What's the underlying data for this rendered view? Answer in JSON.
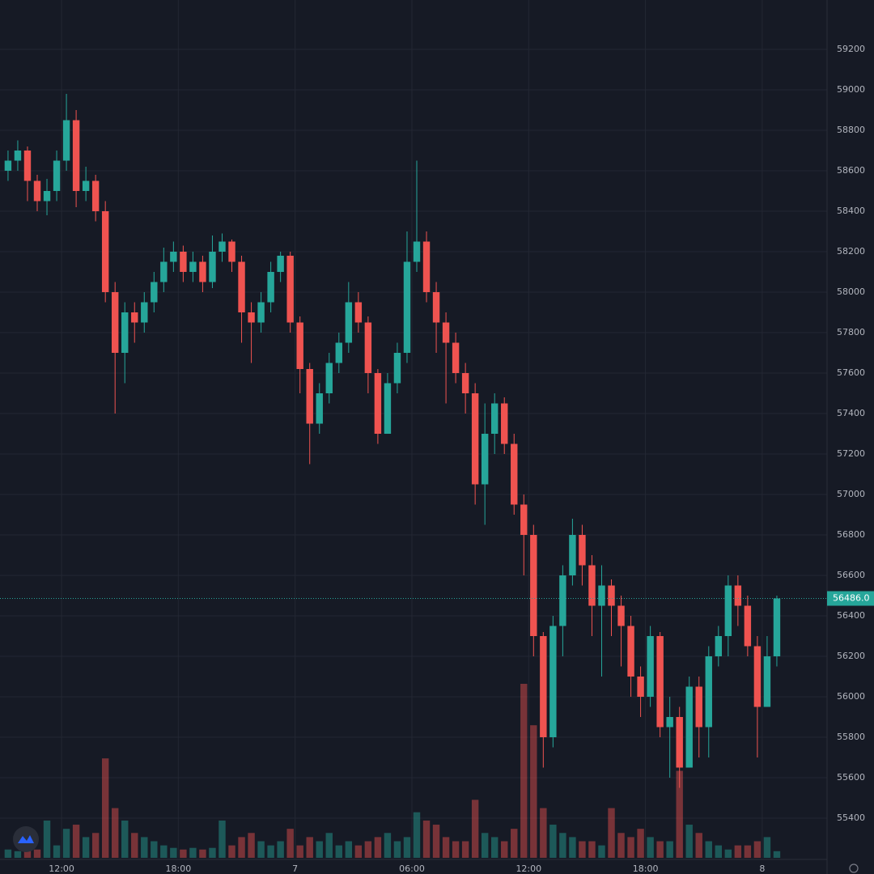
{
  "chart_data": {
    "type": "candlestick",
    "x": [
      9.25,
      9.75,
      10.25,
      10.75,
      11.25,
      11.75,
      12.25,
      12.75,
      13.25,
      13.75,
      14.25,
      14.75,
      15.25,
      15.75,
      16.25,
      16.75,
      17.25,
      17.75,
      18.25,
      18.75,
      19.25,
      19.75,
      20.25,
      20.75,
      21.25,
      21.75,
      22.25,
      22.75,
      23.25,
      23.75,
      24.25,
      24.75,
      25.25,
      25.75,
      26.25,
      26.75,
      27.25,
      27.75,
      28.25,
      28.75,
      29.25,
      29.75,
      30.25,
      30.75,
      31.25,
      31.75,
      32.25,
      32.75,
      33.25,
      33.75,
      34.25,
      34.75,
      35.25,
      35.75,
      36.25,
      36.75,
      37.25,
      37.75,
      38.25,
      38.75,
      39.25,
      39.75,
      40.25,
      40.75,
      41.25,
      41.75,
      42.25,
      42.75,
      43.25,
      43.75,
      44.25,
      44.75,
      45.25,
      45.75,
      46.25,
      46.75,
      47.25,
      47.75,
      48.25,
      48.75
    ],
    "open": [
      58600,
      58650,
      58700,
      58550,
      58450,
      58500,
      58650,
      58850,
      58500,
      58550,
      58400,
      58000,
      57700,
      57900,
      57850,
      57950,
      58050,
      58150,
      58200,
      58100,
      58150,
      58050,
      58200,
      58250,
      58150,
      57900,
      57850,
      57950,
      58100,
      58180,
      57850,
      57620,
      57350,
      57500,
      57650,
      57750,
      57950,
      57850,
      57600,
      57300,
      57550,
      57700,
      58150,
      58250,
      58000,
      57850,
      57750,
      57600,
      57500,
      57050,
      57300,
      57450,
      57250,
      56950,
      56800,
      56300,
      55800,
      56350,
      56600,
      56800,
      56650,
      56450,
      56550,
      56450,
      56350,
      56100,
      56000,
      56300,
      55850,
      55900,
      55650,
      56050,
      55850,
      56200,
      56300,
      56550,
      56450,
      56250,
      55950,
      56200
    ],
    "high": [
      58700,
      58750,
      58720,
      58580,
      58560,
      58700,
      58980,
      58900,
      58620,
      58580,
      58450,
      58050,
      57950,
      57950,
      58000,
      58100,
      58220,
      58250,
      58230,
      58200,
      58180,
      58280,
      58290,
      58260,
      58180,
      57950,
      58000,
      58150,
      58200,
      58200,
      57880,
      57650,
      57550,
      57700,
      57800,
      58050,
      58000,
      57880,
      57620,
      57600,
      57750,
      58300,
      58650,
      58300,
      58050,
      57900,
      57800,
      57650,
      57550,
      57450,
      57500,
      57480,
      57300,
      57000,
      56850,
      56320,
      56400,
      56650,
      56880,
      56850,
      56700,
      56650,
      56580,
      56500,
      56400,
      56150,
      56350,
      56320,
      56000,
      55950,
      56100,
      56100,
      56250,
      56350,
      56600,
      56600,
      56500,
      56300,
      56300,
      56500
    ],
    "low": [
      58550,
      58600,
      58450,
      58400,
      58380,
      58450,
      58600,
      58420,
      58450,
      58350,
      57950,
      57400,
      57550,
      57750,
      57800,
      57900,
      58000,
      58100,
      58050,
      58050,
      58000,
      58020,
      58150,
      58100,
      57750,
      57650,
      57800,
      57900,
      58050,
      57800,
      57500,
      57150,
      57300,
      57450,
      57600,
      57700,
      57800,
      57500,
      57250,
      57300,
      57500,
      57650,
      58100,
      57950,
      57700,
      57450,
      57550,
      57400,
      56950,
      56850,
      57200,
      57200,
      56900,
      56600,
      56200,
      55650,
      55750,
      56200,
      56550,
      56550,
      56300,
      56100,
      56300,
      56150,
      56000,
      55900,
      55950,
      55800,
      55600,
      55550,
      55650,
      55700,
      55700,
      56150,
      56200,
      56350,
      56200,
      55700,
      55950,
      56150
    ],
    "close": [
      58650,
      58700,
      58550,
      58450,
      58500,
      58650,
      58850,
      58500,
      58550,
      58400,
      58000,
      57700,
      57900,
      57850,
      57950,
      58050,
      58150,
      58200,
      58100,
      58150,
      58050,
      58200,
      58250,
      58150,
      57900,
      57850,
      57950,
      58100,
      58180,
      57850,
      57620,
      57350,
      57500,
      57650,
      57750,
      57950,
      57850,
      57600,
      57300,
      57550,
      57700,
      58150,
      58250,
      58000,
      57850,
      57750,
      57600,
      57500,
      57050,
      57300,
      57450,
      57250,
      56950,
      56800,
      56300,
      55800,
      56350,
      56600,
      56800,
      56650,
      56450,
      56550,
      56450,
      56350,
      56100,
      56000,
      56300,
      55850,
      55900,
      55650,
      56050,
      55850,
      56200,
      56300,
      56550,
      56450,
      56250,
      55950,
      56200,
      56486
    ],
    "volume": [
      10,
      8,
      12,
      10,
      45,
      15,
      35,
      40,
      25,
      30,
      120,
      60,
      45,
      30,
      25,
      20,
      15,
      12,
      10,
      12,
      10,
      12,
      45,
      15,
      25,
      30,
      20,
      15,
      20,
      35,
      15,
      25,
      20,
      30,
      15,
      20,
      15,
      20,
      25,
      30,
      20,
      25,
      55,
      45,
      40,
      25,
      20,
      20,
      70,
      30,
      25,
      20,
      35,
      210,
      160,
      60,
      40,
      30,
      25,
      20,
      20,
      15,
      60,
      30,
      25,
      35,
      25,
      20,
      20,
      105,
      40,
      30,
      20,
      15,
      10,
      15,
      15,
      20,
      25,
      8
    ],
    "up_color": "#26a69a",
    "down_color": "#ef5350",
    "xlim": [
      9.17,
      51.33
    ],
    "xticks": [
      {
        "value": 12,
        "label": "12:00"
      },
      {
        "value": 18,
        "label": "18:00"
      },
      {
        "value": 24,
        "label": "7"
      },
      {
        "value": 30,
        "label": "06:00"
      },
      {
        "value": 36,
        "label": "12:00"
      },
      {
        "value": 42,
        "label": "18:00"
      },
      {
        "value": 48,
        "label": "8"
      }
    ],
    "ylim": [
      55204,
      59412
    ],
    "yticks": [
      55400,
      55600,
      55800,
      56000,
      56200,
      56400,
      56600,
      56800,
      57000,
      57200,
      57400,
      57600,
      57800,
      58000,
      58200,
      58400,
      58600,
      58800,
      59000,
      59200
    ],
    "price_line": {
      "value": 56486,
      "label": "56486.0"
    },
    "grid": true
  }
}
